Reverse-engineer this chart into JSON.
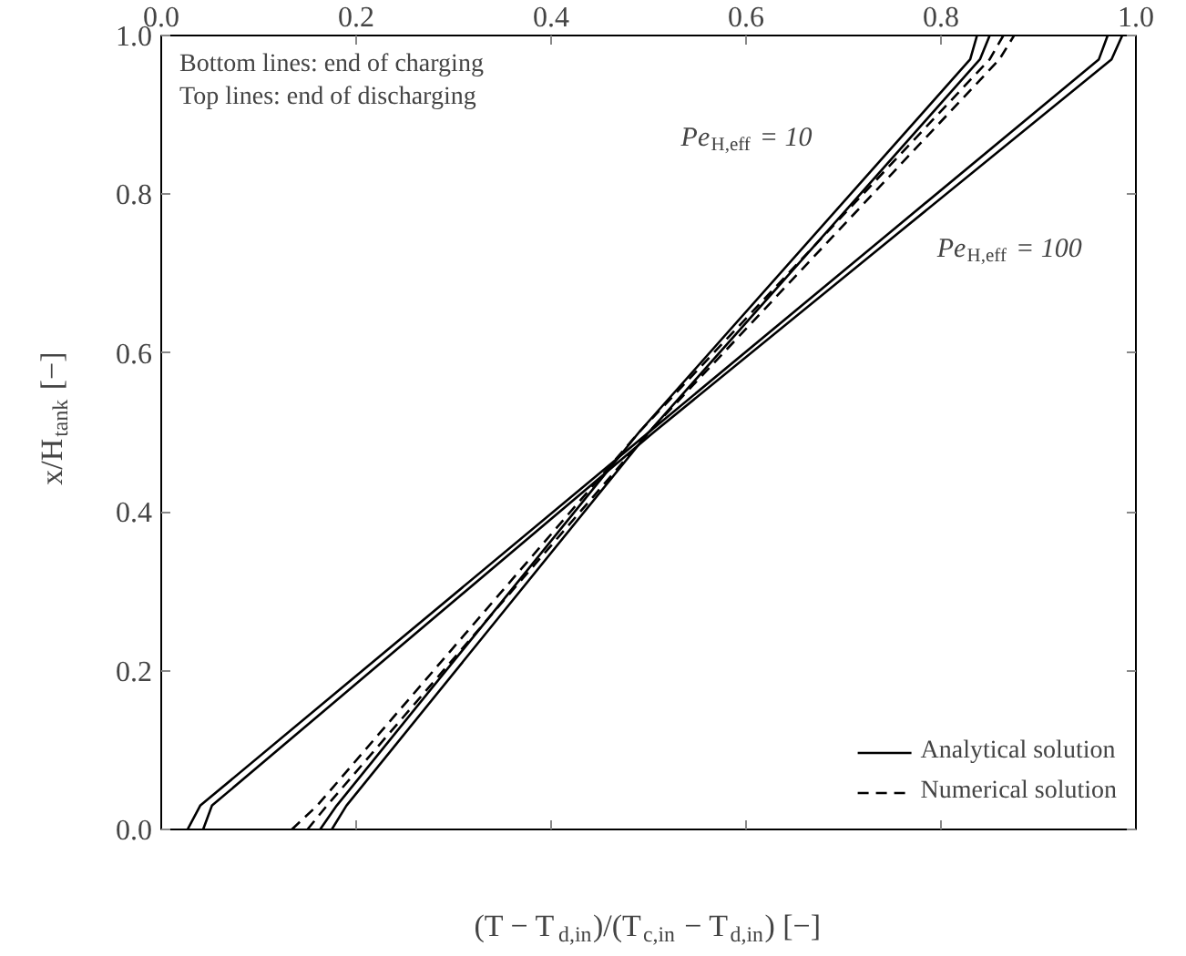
{
  "chart_data": {
    "type": "line",
    "xlabel": "(T − T$_{d,in}$)/(T$_{c,in}$ − T$_{d,in}$) [−]",
    "ylabel": "x/H$_{tank}$ [−]",
    "xlim": [
      0,
      1
    ],
    "ylim": [
      0,
      1
    ],
    "xticks": [
      {
        "value": 0,
        "label": "0.0"
      },
      {
        "value": 0.2,
        "label": "0.2"
      },
      {
        "value": 0.4,
        "label": "0.4"
      },
      {
        "value": 0.6,
        "label": "0.6"
      },
      {
        "value": 0.8,
        "label": "0.8"
      },
      {
        "value": 1,
        "label": "1.0"
      }
    ],
    "yticks": [
      {
        "value": 0,
        "label": "0.0"
      },
      {
        "value": 0.2,
        "label": "0.2"
      },
      {
        "value": 0.4,
        "label": "0.4"
      },
      {
        "value": 0.6,
        "label": "0.6"
      },
      {
        "value": 0.8,
        "label": "0.8"
      },
      {
        "value": 1,
        "label": "1.0"
      }
    ],
    "series": [
      {
        "name": "Analytical solution",
        "color": "#000000",
        "line_style": "solid",
        "x": [
          0.027,
          0.04,
          0.5,
          0.962,
          0.971
        ],
        "values": [
          0,
          0.03,
          0.5,
          0.97,
          1
        ]
      },
      {
        "color": "#000000",
        "line_style": "solid",
        "x": [
          0.043,
          0.052,
          0.505,
          0.975,
          0.986
        ],
        "values": [
          0,
          0.03,
          0.5,
          0.97,
          1
        ]
      },
      {
        "color": "#000000",
        "line_style": "solid",
        "x": [
          0.163,
          0.18,
          0.49,
          0.83,
          0.837
        ],
        "values": [
          0,
          0.03,
          0.5,
          0.97,
          1
        ]
      },
      {
        "color": "#000000",
        "line_style": "solid",
        "x": [
          0.175,
          0.19,
          0.5,
          0.84,
          0.85
        ],
        "values": [
          0,
          0.03,
          0.5,
          0.97,
          1
        ]
      },
      {
        "name": "Numerical solution",
        "color": "#000000",
        "line_style": "dashed",
        "x": [
          0.134,
          0.16,
          0.49,
          0.85,
          0.864
        ],
        "values": [
          0,
          0.03,
          0.5,
          0.97,
          1
        ]
      },
      {
        "color": "#000000",
        "line_style": "dashed",
        "x": [
          0.15,
          0.17,
          0.5,
          0.86,
          0.875
        ],
        "values": [
          0,
          0.03,
          0.5,
          0.97,
          1
        ]
      }
    ],
    "annotations": [
      "Bottom lines: end of charging",
      "Top lines: end of discharging",
      "Pe$_{H,eff}$ = 10",
      "Pe$_{H,eff}$ = 100"
    ],
    "legend": "bottom right",
    "grid": false,
    "marker": "none"
  }
}
